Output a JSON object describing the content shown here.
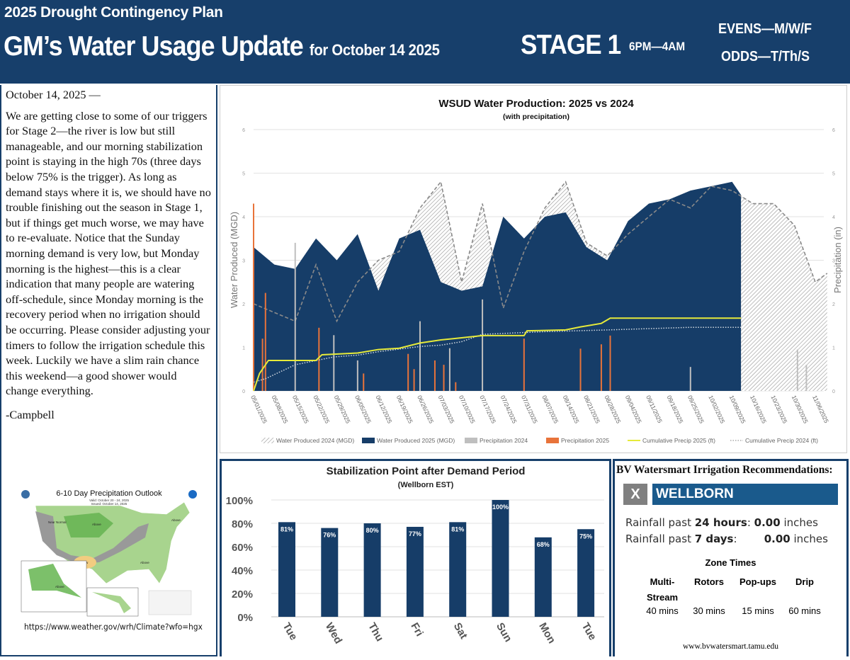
{
  "header": {
    "plan": "2025 Drought Contingency Plan",
    "title": "GM’s Water Usage Update",
    "title_sub": "for October 14 2025",
    "stage": "STAGE 1",
    "hours": "6PM—4AM",
    "evens": "EVENS—M/W/F",
    "odds": "ODDS—T/Th/S",
    "bg_color": "#173f6b"
  },
  "letter": {
    "date": "October 14, 2025 —",
    "body": "We are getting close to some of our triggers for Stage 2—the river is low but still manageable, and our morning stabilization point is staying in the high 70s (three days below 75% is the trigger). As long as demand stays where it is, we should have no trouble finishing out the season in Stage 1, but if things get much worse, we may have to re-evaluate.  Notice that the Sunday morning demand is very low, but Monday morning is the highest—this is a clear indication that many people are watering off-schedule, since Monday morning is the recovery period when no irrigation should be occurring.  Please consider adjusting your timers to follow the irrigation schedule this week.  Luckily we have a slim rain chance this weekend—a good shower would change everything.",
    "signature": "-Campbell"
  },
  "outlook_map": {
    "title": "6-10 Day Precipitation Outlook",
    "valid": "Valid: October 20 - 24, 2025",
    "issued": "Issued: October 14, 2025",
    "labels": [
      "Above",
      "Near Normal",
      "Above",
      "Below",
      "Above",
      "Above"
    ],
    "url": "https://www.weather.gov/wrh/Climate?wfo=hgx"
  },
  "chart_data": [
    {
      "type": "area",
      "title": "WSUD Water Production: 2025 vs 2024",
      "subtitle": "(with precipitation)",
      "ylabel": "Water Produced (MGD)",
      "y2label": "Precipitation (in)",
      "ylim": [
        0,
        6
      ],
      "y2lim": [
        0,
        6
      ],
      "yticks": [
        0,
        1,
        2,
        3,
        4,
        5,
        6
      ],
      "grid": true,
      "legend_position": "bottom",
      "xticks": [
        "05/01/2025",
        "05/08/2025",
        "05/15/2025",
        "05/22/2025",
        "05/29/2025",
        "06/05/2025",
        "06/12/2025",
        "06/19/2025",
        "06/26/2025",
        "07/03/2025",
        "07/10/2025",
        "07/17/2025",
        "07/24/2025",
        "07/31/2025",
        "08/07/2025",
        "08/14/2025",
        "08/21/2025",
        "08/28/2025",
        "09/04/2025",
        "09/11/2025",
        "09/18/2025",
        "09/25/2025",
        "10/02/2025",
        "10/09/2025",
        "10/16/2025",
        "10/23/2025",
        "10/30/2025",
        "11/06/2025"
      ],
      "series": [
        {
          "name": "Water Produced 2024 (MGD)",
          "kind": "hatched-area",
          "color": "#9a9a9a",
          "x": [
            "05/01",
            "05/08",
            "05/15",
            "05/22",
            "05/29",
            "06/05",
            "06/12",
            "06/19",
            "06/26",
            "07/03",
            "07/10",
            "07/17",
            "07/24",
            "07/31",
            "08/07",
            "08/14",
            "08/21",
            "08/28",
            "09/04",
            "09/11",
            "09/18",
            "09/25",
            "10/02",
            "10/09",
            "10/16",
            "10/23",
            "10/30",
            "11/06",
            "11/10"
          ],
          "values": [
            2.0,
            1.8,
            1.6,
            2.9,
            1.6,
            2.5,
            3.0,
            3.2,
            4.2,
            4.8,
            2.5,
            4.3,
            1.9,
            3.2,
            4.2,
            4.8,
            3.4,
            3.1,
            3.6,
            4.0,
            4.4,
            4.2,
            4.7,
            4.6,
            4.3,
            4.3,
            3.8,
            2.5,
            2.7
          ]
        },
        {
          "name": "Water Produced 2025 (MGD)",
          "kind": "area",
          "color": "#163d68",
          "x": [
            "05/01",
            "05/08",
            "05/15",
            "05/22",
            "05/29",
            "06/05",
            "06/12",
            "06/19",
            "06/26",
            "07/03",
            "07/10",
            "07/17",
            "07/24",
            "07/31",
            "08/07",
            "08/14",
            "08/21",
            "08/28",
            "09/04",
            "09/11",
            "09/18",
            "09/25",
            "10/02",
            "10/09",
            "10/12"
          ],
          "values": [
            3.3,
            2.9,
            2.8,
            3.5,
            3.0,
            3.6,
            2.3,
            3.5,
            3.7,
            2.5,
            2.3,
            2.4,
            4.0,
            3.5,
            4.0,
            4.1,
            3.3,
            3.0,
            3.9,
            4.3,
            4.4,
            4.6,
            4.7,
            4.8,
            4.5
          ]
        },
        {
          "name": "Precipitation 2024",
          "kind": "bar",
          "color": "#bfbfbf",
          "x": [
            "05/15",
            "05/28",
            "06/05",
            "06/26",
            "07/06",
            "07/17",
            "09/25",
            "10/31",
            "11/03"
          ],
          "values": [
            3.4,
            1.28,
            0.7,
            1.6,
            0.98,
            2.1,
            0.55,
            0.95,
            0.6
          ]
        },
        {
          "name": "Precipitation 2025",
          "kind": "bar",
          "color": "#e8733a",
          "x": [
            "05/01",
            "05/04",
            "05/05",
            "05/23",
            "06/07",
            "06/22",
            "06/24",
            "07/01",
            "07/04",
            "07/08",
            "07/31",
            "08/19",
            "08/26",
            "08/29"
          ],
          "values": [
            4.3,
            1.2,
            2.25,
            1.45,
            0.4,
            0.85,
            0.5,
            0.7,
            0.6,
            0.2,
            1.2,
            0.97,
            1.07,
            1.27
          ]
        },
        {
          "name": "Cumulative Precip 2025 (ft)",
          "kind": "line",
          "color": "#e6ea3a",
          "x": [
            "05/01",
            "05/03",
            "05/06",
            "05/22",
            "05/24",
            "06/05",
            "06/12",
            "06/19",
            "06/26",
            "07/03",
            "07/10",
            "07/17",
            "07/31",
            "08/01",
            "08/14",
            "08/19",
            "08/26",
            "08/29",
            "10/12"
          ],
          "values": [
            0,
            0.4,
            0.7,
            0.7,
            0.83,
            0.87,
            0.95,
            0.98,
            1.1,
            1.17,
            1.22,
            1.27,
            1.27,
            1.38,
            1.4,
            1.47,
            1.55,
            1.67,
            1.67
          ]
        },
        {
          "name": "Cumulative Precip 2024 (ft)",
          "kind": "dotted-line",
          "color": "#d0d8e0",
          "x": [
            "05/01",
            "05/05",
            "05/15",
            "05/28",
            "06/05",
            "06/12",
            "06/26",
            "07/03",
            "07/10",
            "07/17",
            "08/07",
            "08/28",
            "09/25",
            "10/12"
          ],
          "values": [
            0.2,
            0.28,
            0.6,
            0.78,
            0.82,
            0.9,
            1.02,
            1.05,
            1.13,
            1.3,
            1.36,
            1.4,
            1.46,
            1.46
          ]
        }
      ]
    },
    {
      "type": "bar",
      "title": "Stabilization Point after Demand Period",
      "subtitle": "(Wellborn EST)",
      "categories": [
        "Tue",
        "Wed",
        "Thu",
        "Fri",
        "Sat",
        "Sun",
        "Mon",
        "Tue"
      ],
      "values": [
        81,
        76,
        80,
        77,
        81,
        100,
        68,
        75
      ],
      "data_labels": [
        "81%",
        "76%",
        "80%",
        "77%",
        "81%",
        "100%",
        "68%",
        "75%"
      ],
      "yticks": [
        "0%",
        "20%",
        "40%",
        "60%",
        "80%",
        "100%"
      ],
      "ylim": [
        0,
        100
      ],
      "color": "#163d68",
      "grid": true
    }
  ],
  "irrigation": {
    "title": "BV Watersmart Irrigation Recommendations:",
    "close_label": "X",
    "location": "WELLBORN",
    "rain24_prefix": "Rainfall past ",
    "rain24_period": "24 hours",
    "rain24_value": "0.00",
    "rain7_prefix": "Rainfall past ",
    "rain7_period": "7 days",
    "rain7_value": "0.00",
    "unit": "inches",
    "zone_times_title": "Zone Times",
    "zones": [
      {
        "name": "Multi-Stream",
        "time": "40 mins"
      },
      {
        "name": "Rotors",
        "time": "30 mins"
      },
      {
        "name": "Pop-ups",
        "time": "15 mins"
      },
      {
        "name": "Drip",
        "time": "60 mins"
      }
    ],
    "url": "www.bvwatersmart.tamu.edu"
  }
}
